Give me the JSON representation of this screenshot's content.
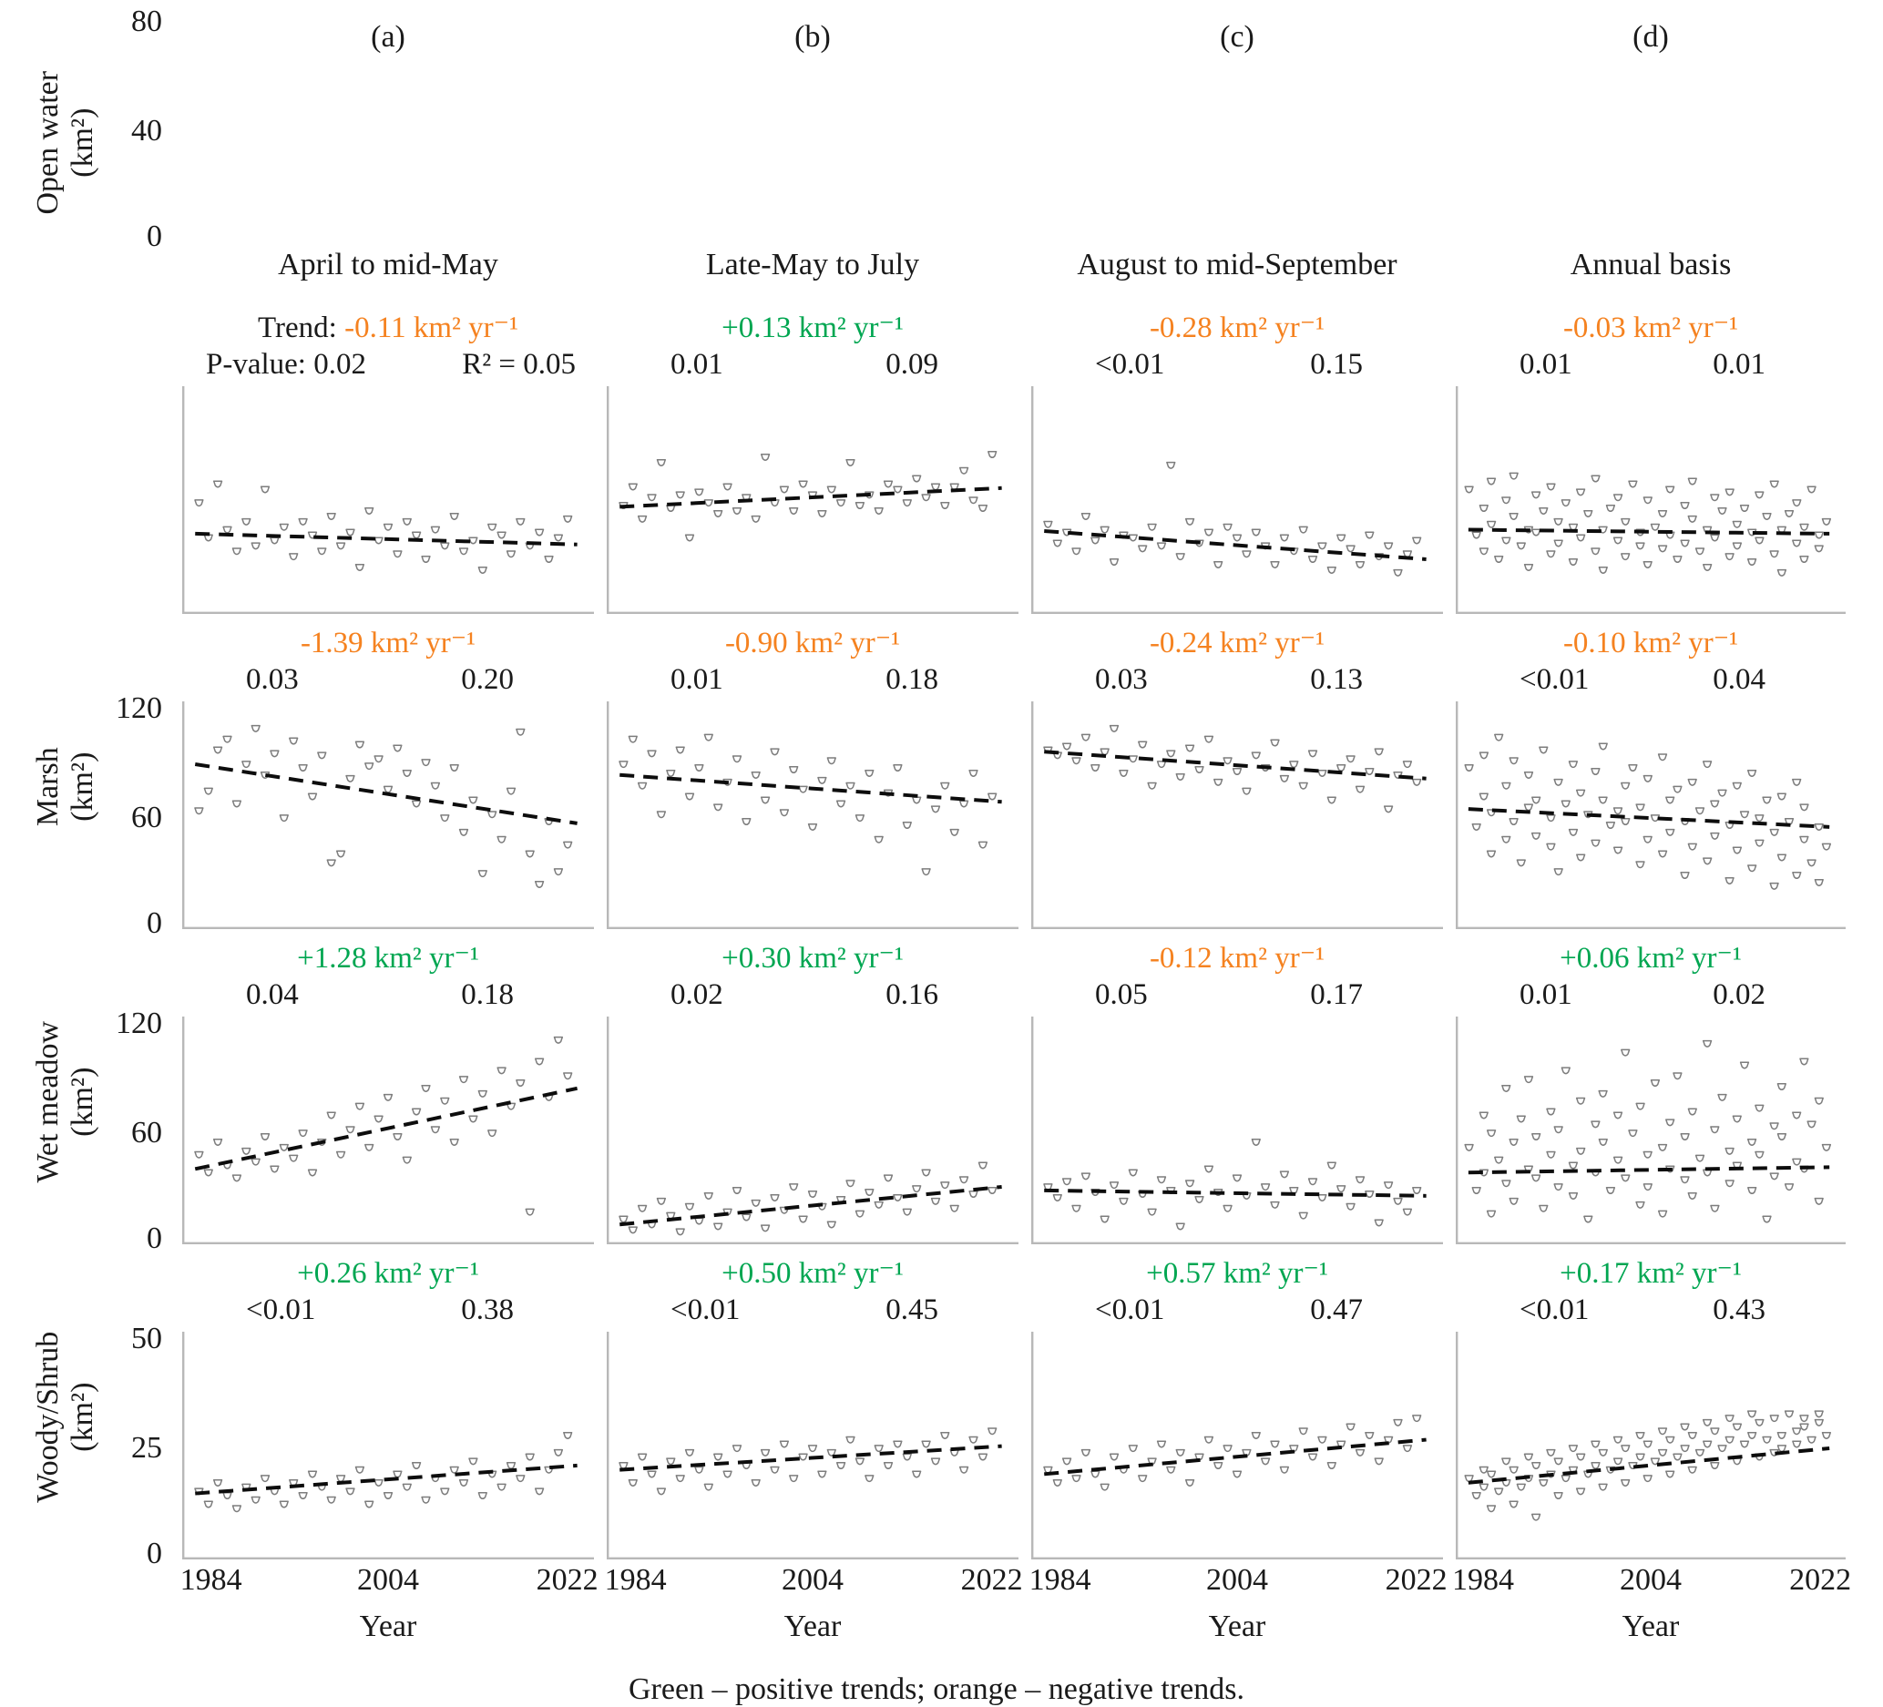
{
  "figure": {
    "columns": [
      {
        "tag": "(a)",
        "title": "April to mid-May"
      },
      {
        "tag": "(b)",
        "title": "Late-May to July"
      },
      {
        "tag": "(c)",
        "title": "August to mid-September"
      },
      {
        "tag": "(d)",
        "title": "Annual basis"
      }
    ],
    "rows": [
      {
        "label": "Open water",
        "unit": "(km²)",
        "yticks": [
          "80",
          "40",
          "0"
        ]
      },
      {
        "label": "Marsh",
        "unit": "(km²)",
        "yticks": [
          "120",
          "60",
          "0"
        ]
      },
      {
        "label": "Wet meadow",
        "unit": "(km²)",
        "yticks": [
          "120",
          "60",
          "0"
        ]
      },
      {
        "label": "Woody/Shrub",
        "unit": "(km²)",
        "yticks": [
          "50",
          "25",
          "0"
        ]
      }
    ],
    "xaxis": {
      "label": "Year",
      "ticks": [
        "1984",
        "2004",
        "2022"
      ]
    },
    "footer": "Green – positive trends; orange – negative trends.",
    "colors": {
      "positive": "#00A651",
      "negative": "#F58220",
      "marker": "#7d7d7d",
      "trend": "#0d0d0d",
      "axis": "#b8b8b8"
    }
  },
  "chart_data": [
    {
      "type": "scatter",
      "row": "Open water",
      "col": "(a)",
      "trend_prefix": "Trend: ",
      "trend_value": "-0.11 km² yr⁻¹",
      "trend_sign": "negative",
      "p_prefix": "P-value: ",
      "p_value": "0.02",
      "r2_prefix": "R² = ",
      "r2_value": "0.05",
      "xlim": [
        1983,
        2025
      ],
      "ylim": [
        0,
        80
      ],
      "x_start": 1984,
      "x_step": 1,
      "trend_line": {
        "x1": 1983.6,
        "y1": 28.5,
        "x2": 2024,
        "y2": 24.5
      },
      "values": [
        40,
        27,
        47,
        30,
        22,
        33,
        24,
        45,
        26,
        31,
        20,
        33,
        28,
        22,
        35,
        24,
        29,
        16,
        37,
        26,
        31,
        21,
        33,
        28,
        19,
        30,
        24,
        35,
        22,
        26,
        15,
        31,
        28,
        21,
        33,
        24,
        29,
        19,
        27,
        34
      ]
    },
    {
      "type": "scatter",
      "row": "Open water",
      "col": "(b)",
      "trend_prefix": "",
      "trend_value": "+0.13 km² yr⁻¹",
      "trend_sign": "positive",
      "p_prefix": "",
      "p_value": "0.01",
      "r2_prefix": "",
      "r2_value": "0.09",
      "xlim": [
        1983,
        2025
      ],
      "ylim": [
        0,
        80
      ],
      "x_start": 1984,
      "x_step": 1,
      "trend_line": {
        "x1": 1983.6,
        "y1": 38.5,
        "x2": 2024,
        "y2": 45.5
      },
      "values": [
        39,
        46,
        34,
        42,
        55,
        38,
        43,
        27,
        44,
        40,
        36,
        46,
        37,
        42,
        34,
        57,
        40,
        45,
        37,
        47,
        43,
        36,
        45,
        40,
        55,
        39,
        43,
        37,
        47,
        45,
        40,
        49,
        42,
        46,
        39,
        46,
        52,
        41,
        38,
        58
      ]
    },
    {
      "type": "scatter",
      "row": "Open water",
      "col": "(c)",
      "trend_prefix": "",
      "trend_value": "-0.28 km² yr⁻¹",
      "trend_sign": "negative",
      "p_prefix": "",
      "p_value": "<0.01",
      "r2_prefix": "",
      "r2_value": "0.15",
      "xlim": [
        1983,
        2025
      ],
      "ylim": [
        0,
        80
      ],
      "x_start": 1984,
      "x_step": 1,
      "trend_line": {
        "x1": 1983.6,
        "y1": 29.5,
        "x2": 2024,
        "y2": 19
      },
      "values": [
        32,
        25,
        29,
        22,
        35,
        26,
        30,
        18,
        28,
        27,
        23,
        31,
        24,
        54,
        20,
        33,
        25,
        29,
        17,
        31,
        27,
        21,
        29,
        24,
        17,
        27,
        22,
        30,
        19,
        24,
        15,
        27,
        23,
        17,
        28,
        20,
        24,
        14,
        21,
        26
      ]
    },
    {
      "type": "scatter",
      "row": "Open water",
      "col": "(d)",
      "trend_prefix": "",
      "trend_value": "-0.03 km² yr⁻¹",
      "trend_sign": "negative",
      "p_prefix": "",
      "p_value": "0.01",
      "r2_prefix": "",
      "r2_value": "0.01",
      "xlim": [
        1983,
        2025
      ],
      "ylim": [
        0,
        80
      ],
      "x_start": 1984,
      "x_step": 0.5,
      "trend_line": {
        "x1": 1983.6,
        "y1": 30,
        "x2": 2024,
        "y2": 28.5
      },
      "values": [
        45,
        28,
        38,
        22,
        48,
        32,
        19,
        41,
        26,
        35,
        50,
        24,
        30,
        16,
        43,
        29,
        37,
        21,
        46,
        33,
        25,
        40,
        18,
        31,
        44,
        27,
        36,
        22,
        49,
        30,
        15,
        38,
        26,
        42,
        20,
        33,
        47,
        24,
        29,
        17,
        41,
        31,
        36,
        23,
        45,
        28,
        19,
        39,
        25,
        34,
        48,
        22,
        30,
        16,
        42,
        27,
        37,
        20,
        44,
        32,
        24,
        38,
        18,
        29,
        43,
        26,
        35,
        21,
        47,
        30,
        14,
        36,
        25,
        40,
        19,
        31,
        45,
        23,
        28,
        33
      ]
    },
    {
      "type": "scatter",
      "row": "Marsh",
      "col": "(a)",
      "trend_prefix": "",
      "trend_value": "-1.39 km² yr⁻¹",
      "trend_sign": "negative",
      "p_prefix": "",
      "p_value": "0.03",
      "r2_prefix": "",
      "r2_value": "0.20",
      "xlim": [
        1983,
        2025
      ],
      "ylim": [
        0,
        120
      ],
      "x_start": 1984,
      "x_step": 1,
      "trend_line": {
        "x1": 1983.6,
        "y1": 90,
        "x2": 2024,
        "y2": 57
      },
      "values": [
        64,
        75,
        98,
        104,
        68,
        90,
        110,
        84,
        96,
        60,
        103,
        88,
        72,
        95,
        35,
        40,
        82,
        101,
        89,
        93,
        76,
        99,
        85,
        68,
        91,
        78,
        60,
        88,
        52,
        70,
        29,
        62,
        48,
        75,
        108,
        40,
        23,
        58,
        30,
        45
      ]
    },
    {
      "type": "scatter",
      "row": "Marsh",
      "col": "(b)",
      "trend_prefix": "",
      "trend_value": "-0.90 km² yr⁻¹",
      "trend_sign": "negative",
      "p_prefix": "",
      "p_value": "0.01",
      "r2_prefix": "",
      "r2_value": "0.18",
      "xlim": [
        1983,
        2025
      ],
      "ylim": [
        0,
        120
      ],
      "x_start": 1984,
      "x_step": 1,
      "trend_line": {
        "x1": 1983.6,
        "y1": 84,
        "x2": 2024,
        "y2": 69
      },
      "values": [
        90,
        104,
        78,
        96,
        62,
        85,
        98,
        72,
        88,
        105,
        66,
        80,
        93,
        58,
        84,
        70,
        97,
        63,
        87,
        76,
        55,
        81,
        92,
        68,
        78,
        60,
        85,
        48,
        74,
        88,
        56,
        70,
        30,
        65,
        78,
        52,
        68,
        85,
        45,
        72
      ]
    },
    {
      "type": "scatter",
      "row": "Marsh",
      "col": "(c)",
      "trend_prefix": "",
      "trend_value": "-0.24 km² yr⁻¹",
      "trend_sign": "negative",
      "p_prefix": "",
      "p_value": "0.03",
      "r2_prefix": "",
      "r2_value": "0.13",
      "xlim": [
        1983,
        2025
      ],
      "ylim": [
        0,
        120
      ],
      "x_start": 1984,
      "x_step": 1,
      "trend_line": {
        "x1": 1983.6,
        "y1": 97,
        "x2": 2024,
        "y2": 82
      },
      "values": [
        98,
        95,
        100,
        92,
        105,
        88,
        97,
        110,
        85,
        93,
        101,
        78,
        90,
        96,
        83,
        99,
        87,
        104,
        80,
        92,
        86,
        75,
        95,
        88,
        102,
        82,
        90,
        78,
        96,
        85,
        70,
        88,
        93,
        76,
        86,
        97,
        65,
        84,
        90,
        80
      ]
    },
    {
      "type": "scatter",
      "row": "Marsh",
      "col": "(d)",
      "trend_prefix": "",
      "trend_value": "-0.10 km² yr⁻¹",
      "trend_sign": "negative",
      "p_prefix": "",
      "p_value": "<0.01",
      "r2_prefix": "",
      "r2_value": "0.04",
      "xlim": [
        1983,
        2025
      ],
      "ylim": [
        0,
        120
      ],
      "x_start": 1984,
      "x_step": 0.5,
      "trend_line": {
        "x1": 1983.6,
        "y1": 65,
        "x2": 2024,
        "y2": 55
      },
      "values": [
        88,
        55,
        72,
        95,
        40,
        63,
        105,
        48,
        78,
        58,
        92,
        35,
        66,
        84,
        50,
        70,
        98,
        44,
        60,
        80,
        30,
        68,
        90,
        52,
        74,
        38,
        62,
        86,
        46,
        70,
        100,
        56,
        64,
        42,
        78,
        58,
        88,
        34,
        66,
        48,
        82,
        60,
        94,
        40,
        70,
        52,
        76,
        28,
        58,
        80,
        44,
        64,
        90,
        36,
        68,
        50,
        74,
        25,
        56,
        78,
        42,
        62,
        85,
        32,
        60,
        46,
        70,
        22,
        52,
        72,
        38,
        58,
        80,
        28,
        48,
        66,
        35,
        55,
        24,
        44
      ]
    },
    {
      "type": "scatter",
      "row": "Wet meadow",
      "col": "(a)",
      "trend_prefix": "",
      "trend_value": "+1.28 km² yr⁻¹",
      "trend_sign": "positive",
      "p_prefix": "",
      "p_value": "0.04",
      "r2_prefix": "",
      "r2_value": "0.18",
      "xlim": [
        1983,
        2025
      ],
      "ylim": [
        0,
        120
      ],
      "x_start": 1984,
      "x_step": 1,
      "trend_line": {
        "x1": 1983.6,
        "y1": 40,
        "x2": 2024,
        "y2": 85
      },
      "values": [
        48,
        38,
        55,
        42,
        35,
        50,
        44,
        58,
        40,
        52,
        46,
        60,
        38,
        55,
        70,
        48,
        62,
        75,
        52,
        68,
        80,
        58,
        45,
        72,
        85,
        62,
        78,
        55,
        90,
        68,
        82,
        60,
        95,
        75,
        88,
        16,
        100,
        80,
        112,
        92
      ]
    },
    {
      "type": "scatter",
      "row": "Wet meadow",
      "col": "(b)",
      "trend_prefix": "",
      "trend_value": "+0.30 km² yr⁻¹",
      "trend_sign": "positive",
      "p_prefix": "",
      "p_value": "0.02",
      "r2_prefix": "",
      "r2_value": "0.16",
      "xlim": [
        1983,
        2025
      ],
      "ylim": [
        0,
        120
      ],
      "x_start": 1984,
      "x_step": 1,
      "trend_line": {
        "x1": 1983.6,
        "y1": 9,
        "x2": 2024,
        "y2": 30
      },
      "values": [
        12,
        6,
        18,
        9,
        22,
        14,
        5,
        19,
        11,
        25,
        8,
        16,
        28,
        13,
        21,
        7,
        24,
        17,
        30,
        12,
        26,
        19,
        9,
        23,
        32,
        15,
        27,
        20,
        35,
        24,
        16,
        29,
        38,
        22,
        31,
        18,
        34,
        26,
        42,
        28
      ]
    },
    {
      "type": "scatter",
      "row": "Wet meadow",
      "col": "(c)",
      "trend_prefix": "",
      "trend_value": "-0.12 km² yr⁻¹",
      "trend_sign": "negative",
      "p_prefix": "",
      "p_value": "0.05",
      "r2_prefix": "",
      "r2_value": "0.17",
      "xlim": [
        1983,
        2025
      ],
      "ylim": [
        0,
        120
      ],
      "x_start": 1984,
      "x_step": 1,
      "trend_line": {
        "x1": 1983.6,
        "y1": 28,
        "x2": 2024,
        "y2": 25
      },
      "values": [
        30,
        24,
        33,
        18,
        36,
        27,
        12,
        31,
        22,
        38,
        26,
        16,
        34,
        28,
        8,
        32,
        23,
        40,
        27,
        18,
        35,
        25,
        55,
        30,
        20,
        37,
        28,
        14,
        33,
        24,
        42,
        29,
        19,
        34,
        26,
        10,
        31,
        22,
        16,
        28
      ]
    },
    {
      "type": "scatter",
      "row": "Wet meadow",
      "col": "(d)",
      "trend_prefix": "",
      "trend_value": "+0.06 km² yr⁻¹",
      "trend_sign": "positive",
      "p_prefix": "",
      "p_value": "0.01",
      "r2_prefix": "",
      "r2_value": "0.02",
      "xlim": [
        1983,
        2025
      ],
      "ylim": [
        0,
        120
      ],
      "x_start": 1984,
      "x_step": 0.5,
      "trend_line": {
        "x1": 1983.6,
        "y1": 38,
        "x2": 2024,
        "y2": 41
      },
      "values": [
        52,
        28,
        70,
        38,
        15,
        60,
        45,
        85,
        32,
        55,
        22,
        68,
        40,
        90,
        35,
        58,
        18,
        72,
        48,
        30,
        62,
        95,
        42,
        25,
        78,
        50,
        12,
        65,
        38,
        82,
        55,
        28,
        70,
        45,
        105,
        35,
        60,
        20,
        75,
        48,
        30,
        88,
        52,
        15,
        66,
        40,
        92,
        34,
        58,
        25,
        72,
        46,
        110,
        38,
        62,
        18,
        80,
        50,
        32,
        68,
        42,
        98,
        55,
        28,
        74,
        48,
        12,
        64,
        36,
        86,
        58,
        30,
        70,
        44,
        100,
        40,
        65,
        22,
        78,
        52
      ]
    },
    {
      "type": "scatter",
      "row": "Woody/Shrub",
      "col": "(a)",
      "trend_prefix": "",
      "trend_value": "+0.26 km² yr⁻¹",
      "trend_sign": "positive",
      "p_prefix": "",
      "p_value": "<0.01",
      "r2_prefix": "",
      "r2_value": "0.38",
      "xlim": [
        1983,
        2025
      ],
      "ylim": [
        0,
        50
      ],
      "x_start": 1984,
      "x_step": 1,
      "trend_line": {
        "x1": 1983.6,
        "y1": 14.5,
        "x2": 2024,
        "y2": 21
      },
      "values": [
        15,
        12,
        17,
        14,
        11,
        16,
        13,
        18,
        15,
        12,
        17,
        14,
        19,
        16,
        13,
        18,
        15,
        20,
        12,
        17,
        14,
        19,
        16,
        21,
        13,
        18,
        15,
        20,
        17,
        22,
        14,
        19,
        16,
        21,
        18,
        23,
        15,
        20,
        24,
        28
      ]
    },
    {
      "type": "scatter",
      "row": "Woody/Shrub",
      "col": "(b)",
      "trend_prefix": "",
      "trend_value": "+0.50 km² yr⁻¹",
      "trend_sign": "positive",
      "p_prefix": "",
      "p_value": "<0.01",
      "r2_prefix": "",
      "r2_value": "0.45",
      "xlim": [
        1983,
        2025
      ],
      "ylim": [
        0,
        50
      ],
      "x_start": 1984,
      "x_step": 1,
      "trend_line": {
        "x1": 1983.6,
        "y1": 20,
        "x2": 2024,
        "y2": 25.5
      },
      "values": [
        21,
        17,
        23,
        19,
        15,
        22,
        18,
        24,
        20,
        16,
        23,
        19,
        25,
        21,
        17,
        24,
        20,
        26,
        18,
        23,
        25,
        19,
        24,
        21,
        27,
        22,
        18,
        25,
        21,
        26,
        23,
        19,
        26,
        22,
        28,
        24,
        20,
        27,
        23,
        29
      ]
    },
    {
      "type": "scatter",
      "row": "Woody/Shrub",
      "col": "(c)",
      "trend_prefix": "",
      "trend_value": "+0.57 km² yr⁻¹",
      "trend_sign": "positive",
      "p_prefix": "",
      "p_value": "<0.01",
      "r2_prefix": "",
      "r2_value": "0.47",
      "xlim": [
        1983,
        2025
      ],
      "ylim": [
        0,
        50
      ],
      "x_start": 1984,
      "x_step": 1,
      "trend_line": {
        "x1": 1983.6,
        "y1": 19,
        "x2": 2024,
        "y2": 27
      },
      "values": [
        20,
        17,
        22,
        18,
        24,
        19,
        16,
        23,
        20,
        25,
        18,
        22,
        26,
        20,
        24,
        17,
        23,
        27,
        21,
        25,
        19,
        24,
        28,
        22,
        26,
        20,
        25,
        29,
        23,
        27,
        21,
        26,
        30,
        24,
        28,
        22,
        27,
        31,
        25,
        32
      ]
    },
    {
      "type": "scatter",
      "row": "Woody/Shrub",
      "col": "(d)",
      "trend_prefix": "",
      "trend_value": "+0.17 km² yr⁻¹",
      "trend_sign": "positive",
      "p_prefix": "",
      "p_value": "<0.01",
      "r2_prefix": "",
      "r2_value": "0.43",
      "xlim": [
        1983,
        2025
      ],
      "ylim": [
        0,
        50
      ],
      "x_start": 1984,
      "x_step": 0.5,
      "trend_line": {
        "x1": 1983.6,
        "y1": 17,
        "x2": 2024,
        "y2": 25
      },
      "values": [
        18,
        14,
        20,
        16,
        11,
        19,
        15,
        22,
        17,
        12,
        20,
        16,
        23,
        18,
        9,
        21,
        17,
        24,
        19,
        14,
        22,
        18,
        25,
        20,
        15,
        23,
        19,
        26,
        21,
        16,
        24,
        20,
        27,
        22,
        17,
        25,
        21,
        28,
        23,
        18,
        26,
        22,
        29,
        24,
        19,
        27,
        23,
        30,
        25,
        20,
        28,
        24,
        31,
        26,
        21,
        29,
        25,
        32,
        27,
        22,
        30,
        26,
        33,
        28,
        23,
        31,
        27,
        24,
        32,
        28,
        25,
        33,
        29,
        26,
        32,
        30,
        27,
        33,
        31,
        28
      ]
    }
  ]
}
